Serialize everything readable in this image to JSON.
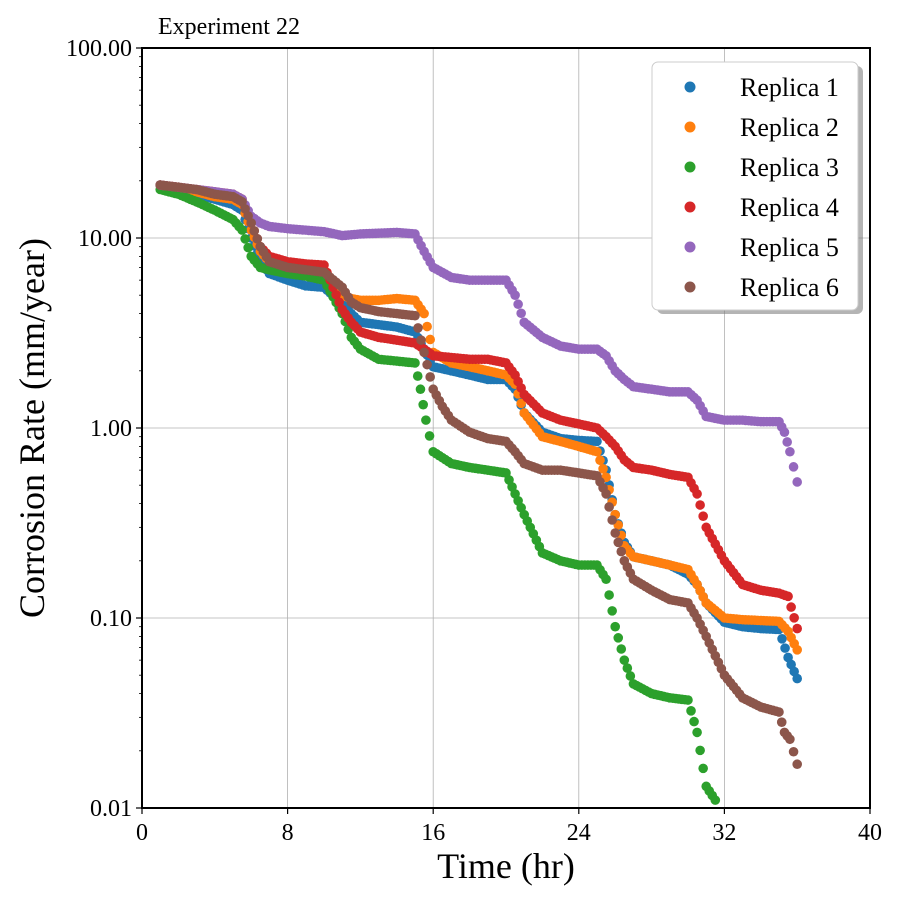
{
  "chart_data": {
    "type": "scatter",
    "title": "Experiment 22",
    "xlabel": "Time (hr)",
    "ylabel": "Corrosion Rate (mm/year)",
    "xlim": [
      0,
      40
    ],
    "ylim": [
      0.01,
      100
    ],
    "yscale": "log",
    "grid": true,
    "legend_position": "top-right",
    "x_ticks": [
      0,
      8,
      16,
      24,
      32,
      40
    ],
    "x_tick_labels": [
      "0",
      "8",
      "16",
      "24",
      "32",
      "40"
    ],
    "y_ticks": [
      0.01,
      0.1,
      1,
      10,
      100
    ],
    "y_tick_labels": [
      "0.01",
      "0.10",
      "1.00",
      "10.00",
      "100.00"
    ],
    "series": [
      {
        "name": "Replica 1",
        "color": "#1f77b4",
        "x": [
          1,
          2,
          3,
          4,
          5,
          5.5,
          6,
          6.5,
          7,
          8,
          9,
          10,
          11,
          11.5,
          12,
          13,
          14,
          15,
          15.5,
          16,
          17,
          18,
          19,
          20,
          20.5,
          21,
          22,
          23,
          24,
          25,
          25.5,
          26,
          26.5,
          27,
          28,
          29,
          30,
          30.5,
          31,
          32,
          33,
          34,
          35,
          35.5,
          36
        ],
        "values": [
          19,
          18,
          17,
          16,
          15,
          14,
          10,
          7.5,
          6.5,
          6,
          5.6,
          5.5,
          4.5,
          4,
          3.6,
          3.5,
          3.4,
          3.2,
          2.6,
          2.1,
          2,
          1.9,
          1.8,
          1.8,
          1.6,
          1.2,
          0.95,
          0.88,
          0.86,
          0.85,
          0.6,
          0.35,
          0.25,
          0.21,
          0.2,
          0.19,
          0.17,
          0.15,
          0.12,
          0.095,
          0.09,
          0.088,
          0.087,
          0.062,
          0.048
        ]
      },
      {
        "name": "Replica 2",
        "color": "#ff7f0e",
        "x": [
          1,
          2,
          3,
          4,
          5,
          5.5,
          6,
          6.5,
          7,
          8,
          9,
          10,
          11,
          11.5,
          12,
          13,
          14,
          15,
          15.5,
          16,
          17,
          18,
          19,
          20,
          20.5,
          21,
          22,
          23,
          24,
          25,
          25.5,
          26,
          26.5,
          27,
          28,
          29,
          30,
          30.5,
          31,
          32,
          33,
          34,
          35,
          35.5,
          36
        ],
        "values": [
          19,
          18.5,
          17.5,
          16.5,
          16,
          15,
          11,
          8.5,
          7.5,
          7.2,
          7,
          6.8,
          5,
          4.8,
          4.7,
          4.7,
          4.8,
          4.7,
          4,
          2.5,
          2.2,
          2.1,
          2,
          1.9,
          1.7,
          1.2,
          0.9,
          0.85,
          0.8,
          0.75,
          0.55,
          0.35,
          0.24,
          0.21,
          0.2,
          0.19,
          0.18,
          0.15,
          0.12,
          0.1,
          0.098,
          0.097,
          0.096,
          0.085,
          0.068
        ]
      },
      {
        "name": "Replica 3",
        "color": "#2ca02c",
        "x": [
          1,
          2,
          3,
          4,
          5,
          5.5,
          6,
          6.5,
          7,
          8,
          9,
          10,
          11,
          11.5,
          12,
          13,
          14,
          15,
          15.3,
          15.6,
          16,
          17,
          18,
          19,
          20,
          20.5,
          21,
          22,
          23,
          24,
          25,
          25.5,
          26,
          26.5,
          27,
          28,
          29,
          30,
          30.5,
          31,
          31.5
        ],
        "values": [
          18,
          17,
          15.5,
          14,
          12.5,
          11,
          8,
          7,
          6.8,
          6.5,
          6.3,
          6,
          4,
          3,
          2.6,
          2.3,
          2.25,
          2.2,
          1.6,
          1.1,
          0.75,
          0.65,
          0.62,
          0.6,
          0.58,
          0.45,
          0.35,
          0.22,
          0.2,
          0.19,
          0.19,
          0.16,
          0.09,
          0.06,
          0.045,
          0.04,
          0.038,
          0.037,
          0.025,
          0.013,
          0.011
        ]
      },
      {
        "name": "Replica 4",
        "color": "#d62728",
        "x": [
          1,
          2,
          3,
          4,
          5,
          5.5,
          6,
          6.5,
          7,
          8,
          9,
          10,
          11,
          11.5,
          12,
          13,
          14,
          15,
          15.5,
          16,
          17,
          18,
          19,
          20,
          20.5,
          21,
          22,
          23,
          24,
          25,
          25.5,
          26,
          26.5,
          27,
          28,
          29,
          30,
          30.5,
          31,
          32,
          33,
          34,
          35,
          35.5,
          36
        ],
        "values": [
          19,
          18.5,
          18,
          17.5,
          17,
          16,
          12,
          9,
          8,
          7.5,
          7.3,
          7.2,
          4.2,
          3.6,
          3.2,
          3,
          2.9,
          2.8,
          2.6,
          2.4,
          2.35,
          2.3,
          2.3,
          2.2,
          1.9,
          1.5,
          1.2,
          1.1,
          1.05,
          1,
          0.9,
          0.8,
          0.68,
          0.62,
          0.6,
          0.57,
          0.55,
          0.45,
          0.3,
          0.2,
          0.15,
          0.14,
          0.135,
          0.13,
          0.088
        ]
      },
      {
        "name": "Replica 5",
        "color": "#9467bd",
        "x": [
          1,
          2,
          3,
          4,
          5,
          5.5,
          6,
          6.5,
          7,
          8,
          9,
          10,
          11,
          12,
          13,
          14,
          15,
          15.5,
          16,
          17,
          18,
          19,
          20,
          20.5,
          21,
          22,
          23,
          24,
          25,
          25.5,
          26,
          26.5,
          27,
          28,
          29,
          30,
          30.5,
          31,
          32,
          33,
          34,
          35,
          35.3,
          35.6,
          36
        ],
        "values": [
          19,
          18.5,
          18,
          17.5,
          17,
          16,
          13,
          12,
          11.5,
          11.2,
          11,
          10.8,
          10.3,
          10.5,
          10.6,
          10.7,
          10.5,
          8.5,
          7,
          6.2,
          6,
          6,
          6,
          5,
          3.6,
          3,
          2.7,
          2.6,
          2.6,
          2.4,
          2,
          1.8,
          1.65,
          1.6,
          1.55,
          1.55,
          1.4,
          1.15,
          1.1,
          1.1,
          1.08,
          1.08,
          0.95,
          0.75,
          0.52
        ]
      },
      {
        "name": "Replica 6",
        "color": "#8c564b",
        "x": [
          1,
          2,
          3,
          4,
          5,
          5.5,
          6,
          6.5,
          7,
          8,
          9,
          10,
          11,
          11.5,
          12,
          13,
          14,
          15,
          15.5,
          16,
          16.5,
          17,
          18,
          19,
          20,
          20.5,
          21,
          22,
          23,
          24,
          25,
          25.5,
          26,
          26.5,
          27,
          28,
          29,
          30,
          30.5,
          31,
          32,
          33,
          34,
          35,
          35.3,
          35.6,
          36
        ],
        "values": [
          19,
          18.5,
          18,
          17,
          16.5,
          15.5,
          12,
          9,
          7.5,
          7,
          6.8,
          6.6,
          5.5,
          4.6,
          4.3,
          4.1,
          4,
          3.9,
          2.5,
          1.6,
          1.3,
          1.1,
          0.95,
          0.88,
          0.85,
          0.75,
          0.65,
          0.6,
          0.6,
          0.58,
          0.56,
          0.45,
          0.28,
          0.2,
          0.16,
          0.14,
          0.125,
          0.12,
          0.1,
          0.08,
          0.05,
          0.038,
          0.034,
          0.032,
          0.025,
          0.023,
          0.017
        ]
      }
    ]
  }
}
